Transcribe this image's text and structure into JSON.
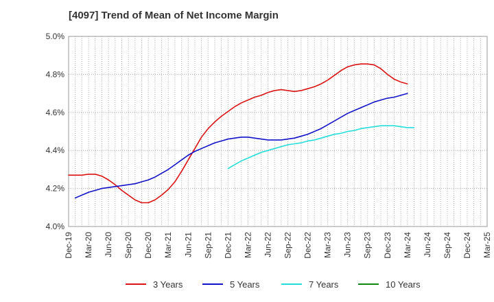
{
  "chart_data": {
    "type": "line",
    "title": "[4097]  Trend of Mean of Net Income Margin",
    "xlabel": "",
    "ylabel": "",
    "x_tick_labels": [
      "Dec-19",
      "Mar-20",
      "Jun-20",
      "Sep-20",
      "Dec-20",
      "Mar-21",
      "Jun-21",
      "Sep-21",
      "Dec-21",
      "Mar-22",
      "Jun-22",
      "Sep-22",
      "Dec-22",
      "Mar-23",
      "Jun-23",
      "Sep-23",
      "Dec-23",
      "Mar-24",
      "Jun-24",
      "Sep-24",
      "Dec-24",
      "Mar-25"
    ],
    "y_tick_labels": [
      "4.0%",
      "4.2%",
      "4.4%",
      "4.6%",
      "4.8%",
      "5.0%"
    ],
    "ylim": [
      4.0,
      5.0
    ],
    "y_ticks": [
      4.0,
      4.2,
      4.4,
      4.6,
      4.8,
      5.0
    ],
    "grid": true,
    "legend_position": "bottom",
    "series": [
      {
        "name": "3 Years",
        "color": "#dd1111",
        "start_index": 0,
        "values": [
          4.27,
          4.27,
          4.27,
          4.275,
          4.275,
          4.265,
          4.245,
          4.22,
          4.19,
          4.165,
          4.14,
          4.125,
          4.125,
          4.14,
          4.165,
          4.195,
          4.235,
          4.29,
          4.35,
          4.41,
          4.47,
          4.515,
          4.55,
          4.58,
          4.605,
          4.63,
          4.65,
          4.665,
          4.68,
          4.69,
          4.705,
          4.715,
          4.72,
          4.715,
          4.71,
          4.715,
          4.725,
          4.735,
          4.75,
          4.77,
          4.795,
          4.82,
          4.84,
          4.85,
          4.855,
          4.855,
          4.85,
          4.83,
          4.8,
          4.775,
          4.76,
          4.75
        ]
      },
      {
        "name": "5 Years",
        "color": "#1111cc",
        "start_index": 1,
        "values": [
          4.15,
          4.165,
          4.18,
          4.19,
          4.2,
          4.205,
          4.21,
          4.215,
          4.22,
          4.225,
          4.235,
          4.245,
          4.26,
          4.28,
          4.3,
          4.325,
          4.35,
          4.375,
          4.395,
          4.41,
          4.425,
          4.44,
          4.45,
          4.46,
          4.465,
          4.47,
          4.47,
          4.465,
          4.46,
          4.455,
          4.455,
          4.455,
          4.46,
          4.465,
          4.475,
          4.485,
          4.5,
          4.515,
          4.535,
          4.555,
          4.575,
          4.595,
          4.61,
          4.625,
          4.64,
          4.655,
          4.665,
          4.675,
          4.68,
          4.69,
          4.7
        ]
      },
      {
        "name": "7 Years",
        "color": "#22dddd",
        "start_index": 24,
        "values": [
          4.305,
          4.325,
          4.345,
          4.36,
          4.375,
          4.39,
          4.4,
          4.41,
          4.42,
          4.43,
          4.435,
          4.44,
          4.45,
          4.455,
          4.465,
          4.475,
          4.485,
          4.49,
          4.5,
          4.505,
          4.515,
          4.52,
          4.525,
          4.53,
          4.53,
          4.53,
          4.525,
          4.52,
          4.52
        ]
      },
      {
        "name": "10 Years",
        "color": "#118811",
        "start_index": 0,
        "values": []
      }
    ]
  }
}
